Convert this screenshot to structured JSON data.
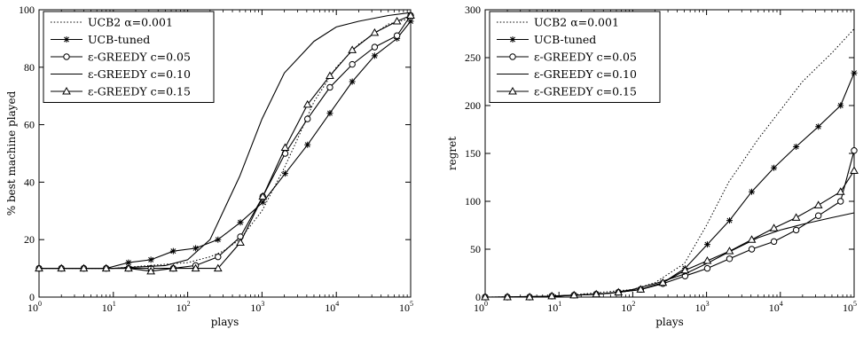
{
  "chart_data": [
    {
      "type": "line",
      "xscale": "log",
      "xlim": [
        1,
        100000
      ],
      "ylim": [
        0,
        100
      ],
      "xticks": [
        1,
        10,
        100,
        1000,
        10000,
        100000
      ],
      "xtick_labels": [
        {
          "base": "10",
          "exp": "0"
        },
        {
          "base": "10",
          "exp": "1"
        },
        {
          "base": "10",
          "exp": "2"
        },
        {
          "base": "10",
          "exp": "3"
        },
        {
          "base": "10",
          "exp": "4"
        },
        {
          "base": "10",
          "exp": "5"
        }
      ],
      "yticks": [
        0,
        20,
        40,
        60,
        80,
        100
      ],
      "ytick_labels": [
        "0",
        "20",
        "40",
        "60",
        "80",
        "100"
      ],
      "xlabel": "plays",
      "ylabel": "% best machine played",
      "legend_position": "top-left",
      "grid": false,
      "series": [
        {
          "name": "UCB2 α=0.001",
          "style": "dotted",
          "marker": "none",
          "x": [
            1,
            10,
            30,
            100,
            200,
            300,
            500,
            1000,
            2000,
            3000,
            5000,
            10000,
            20000,
            50000,
            100000
          ],
          "y": [
            10,
            10,
            11,
            12,
            14,
            16,
            20,
            30,
            45,
            55,
            68,
            80,
            88,
            95,
            97
          ]
        },
        {
          "name": "UCB-tuned",
          "style": "solid",
          "marker": "star",
          "x": [
            1,
            2,
            4,
            8,
            16,
            32,
            64,
            128,
            256,
            512,
            1024,
            2048,
            4096,
            8192,
            16384,
            32768,
            65536,
            100000
          ],
          "y": [
            10,
            10,
            10,
            10,
            12,
            13,
            16,
            17,
            20,
            26,
            33,
            43,
            53,
            64,
            75,
            84,
            90,
            96
          ]
        },
        {
          "name": "ε-GREEDY c=0.05",
          "style": "solid",
          "marker": "circle",
          "x": [
            1,
            2,
            4,
            8,
            16,
            32,
            64,
            128,
            256,
            512,
            1024,
            2048,
            4096,
            8192,
            16384,
            32768,
            65536,
            100000
          ],
          "y": [
            10,
            10,
            10,
            10,
            10,
            10,
            10,
            11,
            14,
            21,
            35,
            50,
            62,
            73,
            81,
            87,
            91,
            98
          ]
        },
        {
          "name": "ε-GREEDY c=0.10",
          "style": "solid",
          "marker": "none",
          "x": [
            1,
            10,
            50,
            100,
            200,
            500,
            1000,
            2000,
            5000,
            10000,
            20000,
            50000,
            100000
          ],
          "y": [
            10,
            10,
            11,
            13,
            20,
            42,
            62,
            78,
            89,
            94,
            96,
            98,
            99
          ]
        },
        {
          "name": "ε-GREEDY c=0.15",
          "style": "solid",
          "marker": "triangle",
          "x": [
            1,
            2,
            4,
            8,
            16,
            32,
            64,
            128,
            256,
            512,
            1024,
            2048,
            4096,
            8192,
            16384,
            32768,
            65536,
            100000
          ],
          "y": [
            10,
            10,
            10,
            10,
            10,
            9,
            10,
            10,
            10,
            19,
            35,
            52,
            67,
            77,
            86,
            92,
            96,
            98
          ]
        }
      ]
    },
    {
      "type": "line",
      "xscale": "log",
      "xlim": [
        1,
        100000
      ],
      "ylim": [
        0,
        300
      ],
      "xticks": [
        1,
        10,
        100,
        1000,
        10000,
        100000
      ],
      "xtick_labels": [
        {
          "base": "10",
          "exp": "0"
        },
        {
          "base": "10",
          "exp": "1"
        },
        {
          "base": "10",
          "exp": "2"
        },
        {
          "base": "10",
          "exp": "3"
        },
        {
          "base": "10",
          "exp": "4"
        },
        {
          "base": "10",
          "exp": "5"
        }
      ],
      "yticks": [
        0,
        50,
        100,
        150,
        200,
        250,
        300
      ],
      "ytick_labels": [
        "0",
        "50",
        "100",
        "150",
        "200",
        "250",
        "300"
      ],
      "xlabel": "plays",
      "ylabel": "regret",
      "legend_position": "top-left",
      "grid": false,
      "series": [
        {
          "name": "UCB2 α=0.001",
          "style": "dotted",
          "marker": "none",
          "x": [
            1,
            10,
            100,
            200,
            500,
            1000,
            2000,
            5000,
            10000,
            20000,
            50000,
            100000
          ],
          "y": [
            0,
            1,
            8,
            15,
            35,
            75,
            120,
            165,
            195,
            225,
            255,
            280
          ]
        },
        {
          "name": "UCB-tuned",
          "style": "solid",
          "marker": "star",
          "x": [
            1,
            2,
            4,
            8,
            16,
            32,
            64,
            128,
            256,
            512,
            1024,
            2048,
            4096,
            8192,
            16384,
            32768,
            65536,
            100000
          ],
          "y": [
            0,
            0,
            0,
            1,
            2,
            3,
            5,
            8,
            15,
            30,
            55,
            80,
            110,
            135,
            157,
            178,
            200,
            234
          ]
        },
        {
          "name": "ε-GREEDY c=0.05",
          "style": "solid",
          "marker": "circle",
          "x": [
            1,
            2,
            4,
            8,
            16,
            32,
            64,
            128,
            256,
            512,
            1024,
            2048,
            4096,
            8192,
            16384,
            32768,
            65536,
            100000
          ],
          "y": [
            0,
            0,
            0,
            1,
            2,
            3,
            5,
            8,
            14,
            22,
            30,
            40,
            50,
            58,
            70,
            85,
            100,
            153
          ]
        },
        {
          "name": "ε-GREEDY c=0.10",
          "style": "solid",
          "marker": "none",
          "x": [
            1,
            10,
            50,
            100,
            200,
            500,
            1000,
            2000,
            5000,
            10000,
            20000,
            50000,
            100000
          ],
          "y": [
            0,
            1,
            4,
            8,
            14,
            24,
            35,
            47,
            62,
            70,
            76,
            83,
            88
          ]
        },
        {
          "name": "ε-GREEDY c=0.15",
          "style": "solid",
          "marker": "triangle",
          "x": [
            1,
            2,
            4,
            8,
            16,
            32,
            64,
            128,
            256,
            512,
            1024,
            2048,
            4096,
            8192,
            16384,
            32768,
            65536,
            100000
          ],
          "y": [
            0,
            0,
            0,
            1,
            2,
            3,
            5,
            8,
            15,
            28,
            38,
            48,
            60,
            72,
            83,
            96,
            110,
            132
          ]
        }
      ]
    }
  ]
}
